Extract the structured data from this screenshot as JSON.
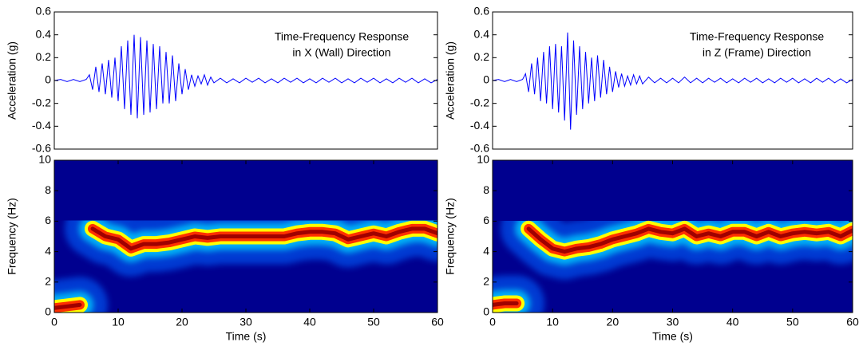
{
  "chart_data": [
    {
      "type": "line",
      "ylabel": "Acceleration (g)",
      "annotation": [
        "Time-Frequency Response",
        "in X (Wall) Direction"
      ],
      "xlim": [
        0,
        60
      ],
      "ylim": [
        -0.6,
        0.6
      ],
      "yticks": [
        0.6,
        0.4,
        0.2,
        0,
        -0.2,
        -0.4,
        -0.6
      ],
      "color": "#0000ff",
      "x": [
        0,
        1,
        2,
        3,
        4,
        5,
        5.5,
        6,
        6.5,
        7,
        7.5,
        8,
        8.5,
        9,
        9.5,
        10,
        10.5,
        11,
        11.5,
        12,
        12.5,
        13,
        13.5,
        14,
        14.5,
        15,
        15.5,
        16,
        16.5,
        17,
        17.5,
        18,
        18.5,
        19,
        19.5,
        20,
        20.5,
        21,
        21.5,
        22,
        22.5,
        23,
        23.5,
        24,
        24.5,
        25,
        26,
        27,
        28,
        29,
        30,
        31,
        32,
        33,
        34,
        35,
        36,
        37,
        38,
        39,
        40,
        41,
        42,
        43,
        44,
        45,
        46,
        47,
        48,
        49,
        50,
        51,
        52,
        53,
        54,
        55,
        56,
        57,
        58,
        59,
        60
      ],
      "values": [
        0,
        0.01,
        -0.01,
        0.01,
        -0.01,
        0.01,
        0.05,
        -0.08,
        0.12,
        -0.1,
        0.15,
        -0.12,
        0.18,
        -0.15,
        0.2,
        -0.18,
        0.3,
        -0.25,
        0.35,
        -0.3,
        0.4,
        -0.33,
        0.38,
        -0.3,
        0.35,
        -0.28,
        0.32,
        -0.25,
        0.3,
        -0.2,
        0.25,
        -0.2,
        0.22,
        -0.18,
        0.15,
        -0.12,
        0.1,
        -0.08,
        0.05,
        -0.05,
        0.04,
        -0.03,
        0.05,
        -0.04,
        0.03,
        -0.02,
        0.02,
        -0.02,
        0.015,
        -0.02,
        0.02,
        -0.015,
        0.02,
        -0.02,
        0.015,
        -0.02,
        0.02,
        -0.015,
        0.02,
        -0.02,
        0.015,
        -0.02,
        0.02,
        -0.015,
        0.02,
        -0.02,
        0.015,
        -0.02,
        0.02,
        -0.015,
        0.02,
        -0.02,
        0.015,
        -0.02,
        0.02,
        -0.015,
        0.02,
        -0.02,
        0.015,
        -0.02,
        0.01
      ]
    },
    {
      "type": "spectrogram",
      "xlabel": "Time (s)",
      "ylabel": "Frequency (Hz)",
      "xlim": [
        0,
        60
      ],
      "ylim": [
        0,
        10
      ],
      "xticks": [
        0,
        10,
        20,
        30,
        40,
        50,
        60
      ],
      "yticks": [
        0,
        2,
        4,
        6,
        8,
        10
      ],
      "x": [
        0,
        2,
        4,
        5,
        6,
        8,
        10,
        12,
        14,
        16,
        18,
        20,
        22,
        24,
        26,
        28,
        30,
        32,
        34,
        36,
        38,
        40,
        42,
        44,
        46,
        48,
        50,
        52,
        54,
        56,
        58,
        60
      ],
      "values": [
        0.3,
        0.4,
        0.5,
        null,
        5.5,
        5,
        4.8,
        4.2,
        4.5,
        4.5,
        4.6,
        4.8,
        5,
        4.9,
        5,
        5,
        5,
        5,
        5,
        5,
        5.2,
        5.3,
        5.3,
        5.2,
        4.8,
        5,
        5.2,
        5,
        5.3,
        5.5,
        5.5,
        5.2
      ]
    },
    {
      "type": "line",
      "ylabel": "Acceleration (g)",
      "annotation": [
        "Time-Frequency Response",
        "in Z (Frame) Direction"
      ],
      "xlim": [
        0,
        60
      ],
      "ylim": [
        -0.6,
        0.6
      ],
      "yticks": [
        0.6,
        0.4,
        0.2,
        0,
        -0.2,
        -0.4,
        -0.6
      ],
      "color": "#0000ff",
      "x": [
        0,
        1,
        2,
        3,
        4,
        5,
        5.5,
        6,
        6.5,
        7,
        7.5,
        8,
        8.5,
        9,
        9.5,
        10,
        10.5,
        11,
        11.5,
        12,
        12.5,
        13,
        13.5,
        14,
        14.5,
        15,
        15.5,
        16,
        16.5,
        17,
        17.5,
        18,
        18.5,
        19,
        19.5,
        20,
        20.5,
        21,
        21.5,
        22,
        22.5,
        23,
        23.5,
        24,
        24.5,
        25,
        26,
        27,
        28,
        29,
        30,
        31,
        32,
        33,
        34,
        35,
        36,
        37,
        38,
        39,
        40,
        41,
        42,
        43,
        44,
        45,
        46,
        47,
        48,
        49,
        50,
        51,
        52,
        53,
        54,
        55,
        56,
        57,
        58,
        59,
        60
      ],
      "values": [
        0,
        0.01,
        -0.01,
        0.01,
        -0.01,
        0.01,
        0.06,
        -0.1,
        0.15,
        -0.12,
        0.2,
        -0.18,
        0.25,
        -0.2,
        0.3,
        -0.25,
        0.32,
        -0.28,
        0.3,
        -0.35,
        0.42,
        -0.43,
        0.35,
        -0.3,
        0.3,
        -0.25,
        0.25,
        -0.2,
        0.2,
        -0.18,
        0.22,
        -0.15,
        0.18,
        -0.12,
        0.12,
        -0.1,
        0.08,
        -0.06,
        0.06,
        -0.05,
        0.04,
        -0.04,
        0.05,
        -0.03,
        0.04,
        -0.03,
        0.03,
        -0.02,
        0.02,
        -0.02,
        0.02,
        -0.02,
        0.03,
        -0.02,
        0.02,
        -0.02,
        0.02,
        -0.015,
        0.02,
        -0.02,
        0.015,
        -0.02,
        0.02,
        -0.015,
        0.02,
        -0.02,
        0.015,
        -0.02,
        0.02,
        -0.015,
        0.02,
        -0.02,
        0.015,
        -0.02,
        0.02,
        -0.015,
        0.02,
        -0.02,
        0.015,
        -0.02,
        0.01
      ]
    },
    {
      "type": "spectrogram",
      "xlabel": "Time (s)",
      "ylabel": "Frequency (Hz)",
      "xlim": [
        0,
        60
      ],
      "ylim": [
        0,
        10
      ],
      "xticks": [
        0,
        10,
        20,
        30,
        40,
        50,
        60
      ],
      "yticks": [
        0,
        2,
        4,
        6,
        8,
        10
      ],
      "x": [
        0,
        2,
        4,
        5,
        6,
        8,
        10,
        12,
        14,
        16,
        18,
        20,
        22,
        24,
        26,
        28,
        30,
        32,
        34,
        36,
        38,
        40,
        42,
        44,
        46,
        48,
        50,
        52,
        54,
        56,
        58,
        60
      ],
      "values": [
        0.5,
        0.6,
        0.6,
        null,
        5.5,
        4.8,
        4.2,
        4,
        4.2,
        4.3,
        4.5,
        4.8,
        5,
        5.2,
        5.5,
        5.3,
        5.2,
        5.5,
        5,
        5.2,
        5,
        5.3,
        5.3,
        5,
        5.3,
        5,
        5.2,
        5.3,
        5.2,
        5.3,
        5,
        5.4
      ]
    }
  ]
}
